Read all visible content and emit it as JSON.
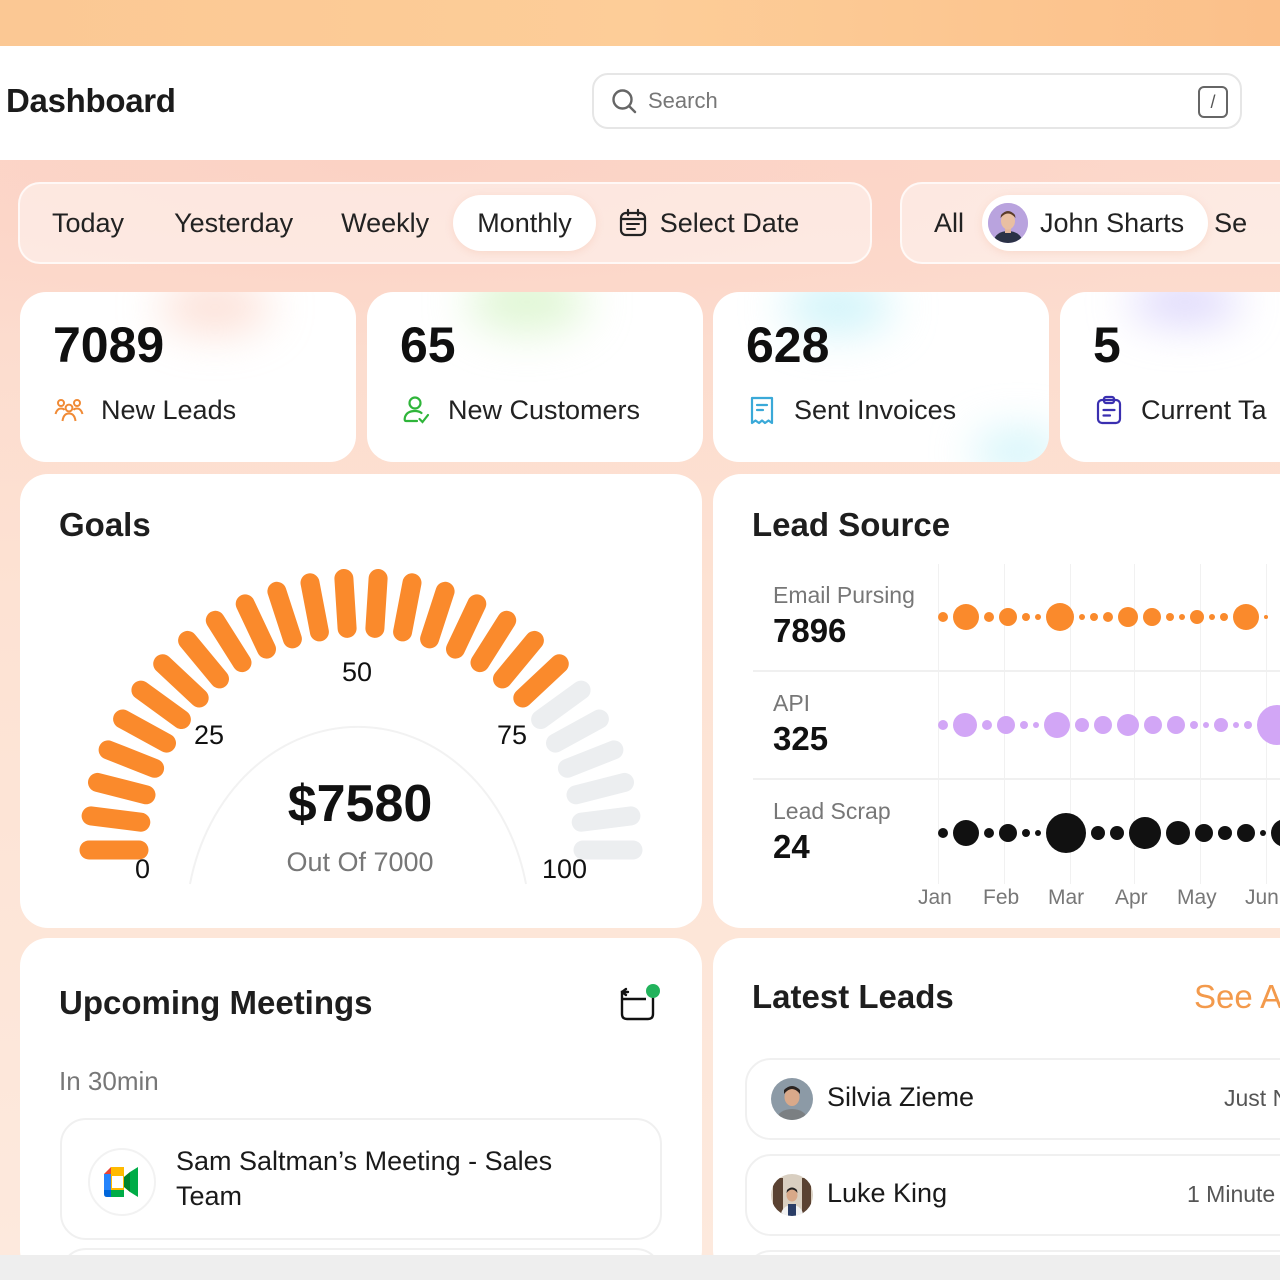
{
  "header": {
    "title": "Dashboard",
    "search_placeholder": "Search",
    "search_shortcut": "/"
  },
  "period_filter": {
    "options": [
      "Today",
      "Yesterday",
      "Weekly",
      "Monthly"
    ],
    "active": "Monthly",
    "select_date_label": "Select Date"
  },
  "people_filter": {
    "all_label": "All",
    "selected_person": "John Sharts",
    "next_partial": "Se"
  },
  "stats": [
    {
      "value": "7089",
      "label": "New Leads",
      "icon": "users-icon",
      "color": "#f08a35"
    },
    {
      "value": "65",
      "label": "New Customers",
      "icon": "user-check-icon",
      "color": "#2fb53a"
    },
    {
      "value": "628",
      "label": "Sent Invoices",
      "icon": "receipt-icon",
      "color": "#3aa9d8"
    },
    {
      "value": "5",
      "label": "Current Ta",
      "icon": "clipboard-icon",
      "color": "#3a2fb0"
    }
  ],
  "goals": {
    "title": "Goals",
    "value": "$7580",
    "subtitle": "Out Of 7000",
    "tick_labels": [
      "0",
      "25",
      "50",
      "75",
      "100"
    ],
    "filled_segments": 20,
    "total_segments": 26,
    "active_color": "#fa8a2c",
    "inactive_color": "#eceef0"
  },
  "lead_source": {
    "title": "Lead Source",
    "rows": [
      {
        "name": "Email Pursing",
        "value": "7896",
        "color": "#fa8a2c"
      },
      {
        "name": "API",
        "value": "325",
        "color": "#d2a6f6"
      },
      {
        "name": "Lead Scrap",
        "value": "24",
        "color": "#111111"
      }
    ],
    "months": [
      "Jan",
      "Feb",
      "Mar",
      "Apr",
      "May",
      "Jun"
    ]
  },
  "chart_data": {
    "type": "scatter",
    "title": "Lead Source",
    "categories": [
      "Jan",
      "Feb",
      "Mar",
      "Apr",
      "May",
      "Jun"
    ],
    "series": [
      {
        "name": "Email Pursing",
        "total": 7896,
        "color": "#fa8a2c",
        "dot_sizes": [
          5,
          13,
          5,
          9,
          4,
          3,
          14,
          3,
          4,
          5,
          10,
          9,
          4,
          3,
          7,
          3,
          4,
          13,
          2
        ]
      },
      {
        "name": "API",
        "total": 325,
        "color": "#d2a6f6",
        "dot_sizes": [
          5,
          12,
          5,
          9,
          4,
          3,
          13,
          7,
          9,
          11,
          9,
          9,
          4,
          3,
          7,
          3,
          4,
          20
        ]
      },
      {
        "name": "Lead Scrap",
        "total": 24,
        "color": "#111111",
        "dot_sizes": [
          5,
          13,
          5,
          9,
          4,
          3,
          20,
          7,
          7,
          16,
          12,
          9,
          7,
          9,
          3,
          14
        ]
      }
    ],
    "xlabel": "",
    "ylabel": "",
    "grid": true
  },
  "meetings": {
    "title": "Upcoming Meetings",
    "group_label": "In 30min",
    "items": [
      {
        "title": "Sam Saltman’s Meeting - Sales Team",
        "app": "google-meet"
      }
    ]
  },
  "latest_leads": {
    "title": "Latest Leads",
    "see_all": "See A",
    "items": [
      {
        "name": "Silvia Zieme",
        "time": "Just N"
      },
      {
        "name": "Luke King",
        "time": "1 Minute"
      }
    ]
  }
}
